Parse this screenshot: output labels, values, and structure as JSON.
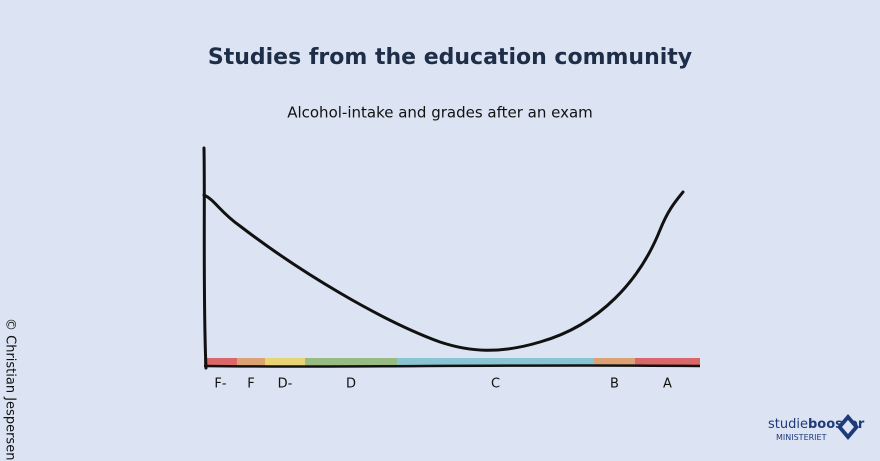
{
  "title": "Studies from the education community",
  "subtitle": "Alcohol-intake and grades after an exam",
  "grades": [
    {
      "label": "F-",
      "color": "#d9595a"
    },
    {
      "label": "F",
      "color": "#dc9a66"
    },
    {
      "label": "D-",
      "color": "#e8d266"
    },
    {
      "label": "D",
      "color": "#8fb673"
    },
    {
      "label": "C",
      "color": "#7fc0cf"
    },
    {
      "label": "B",
      "color": "#dc9a66"
    },
    {
      "label": "A",
      "color": "#d9595a"
    }
  ],
  "credit": "© Christian Jespersen",
  "logo": {
    "brand_light": "studie",
    "brand_bold": "booster",
    "sub": "MINISTERIET"
  }
}
